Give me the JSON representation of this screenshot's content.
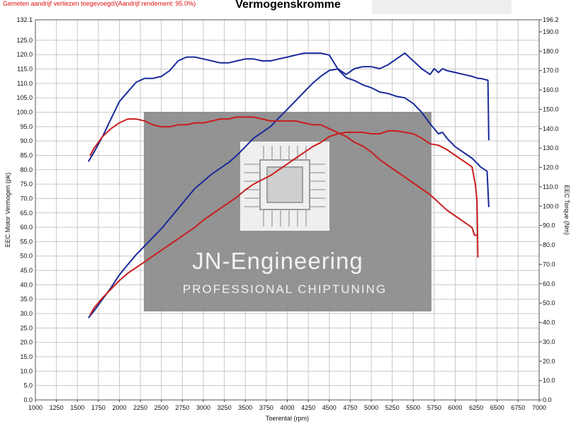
{
  "notice": "Gemeten aandrijf verliezen toegevoegd!(Aandrijf rendement: 95.0%)",
  "watermark": {
    "name": "JN-Engineering",
    "tagline": "PROFESSIONAL CHIPTUNING"
  },
  "colors": {
    "power_before": "#1a2a9a",
    "power_after": "#1a2a9a",
    "torque_before": "#c81e1e",
    "torque_after": "#c81e1e",
    "grid": "#c8c8c8",
    "watermark_bg": "#8a8a8a"
  },
  "chart_data": {
    "type": "line",
    "title": "Vermogenskromme",
    "xlabel": "Toerental (rpm)",
    "ylabel_left": "EEC Motor Vermogen (pk)",
    "ylabel_right": "EEC Torque (Nm)",
    "xlim": [
      1000,
      7000
    ],
    "ylim_left": [
      0,
      132.1
    ],
    "ylim_right": [
      0,
      196.2
    ],
    "grid": true,
    "x_ticks": [
      "1000",
      "1250",
      "1500",
      "1750",
      "2000",
      "2250",
      "2500",
      "2750",
      "3000",
      "3250",
      "3500",
      "3750",
      "4000",
      "4250",
      "4500",
      "4750",
      "5000",
      "5250",
      "5500",
      "5750",
      "6000",
      "6250",
      "6500",
      "6750",
      "7000"
    ],
    "y_left_ticks": [
      "0.0",
      "5.0",
      "10.0",
      "15.0",
      "20.0",
      "25.0",
      "30.0",
      "35.0",
      "40.0",
      "45.0",
      "50.0",
      "55.0",
      "60.0",
      "65.0",
      "70.0",
      "75.0",
      "80.0",
      "85.0",
      "90.0",
      "95.0",
      "100.0",
      "105.0",
      "110.0",
      "115.0",
      "120.0",
      "125.0",
      "132.1"
    ],
    "y_right_ticks": [
      "0.0",
      "10.0",
      "20.0",
      "30.0",
      "40.0",
      "50.0",
      "60.0",
      "70.0",
      "80.0",
      "90.0",
      "100.0",
      "110.0",
      "120.0",
      "130.0",
      "140.0",
      "150.0",
      "160.0",
      "170.0",
      "180.0",
      "190.0",
      "196.2"
    ],
    "series": [
      {
        "axis": "right",
        "kind": "torque_tuned",
        "color": "#1a2a9a",
        "x": [
          1630,
          1700,
          1800,
          1900,
          2000,
          2100,
          2200,
          2300,
          2400,
          2500,
          2600,
          2700,
          2800,
          2900,
          3000,
          3100,
          3200,
          3300,
          3400,
          3500,
          3600,
          3700,
          3800,
          3900,
          4000,
          4100,
          4200,
          4300,
          4400,
          4500,
          4600,
          4700,
          4800,
          4900,
          5000,
          5100,
          5200,
          5300,
          5400,
          5500,
          5600,
          5700,
          5750,
          5800,
          5850,
          5900,
          6000,
          6100,
          6200,
          6270,
          6300,
          6390,
          6400
        ],
        "y": [
          123,
          128,
          136,
          145,
          154,
          159,
          164,
          166,
          166,
          167,
          170,
          175,
          177,
          177,
          176,
          175,
          174,
          174,
          175,
          176,
          176,
          175,
          175,
          176,
          177,
          178,
          179,
          179,
          179,
          178,
          171,
          168,
          171,
          172,
          172,
          171,
          173,
          176,
          179,
          175,
          171,
          168,
          171,
          169,
          171,
          170,
          169,
          168,
          167,
          166,
          166,
          165,
          134
        ]
      },
      {
        "axis": "left",
        "kind": "power_tuned",
        "color": "#1a2a9a",
        "x": [
          1630,
          1700,
          1800,
          1900,
          2000,
          2100,
          2200,
          2300,
          2400,
          2500,
          2600,
          2700,
          2800,
          2900,
          3000,
          3100,
          3200,
          3300,
          3400,
          3500,
          3600,
          3700,
          3800,
          3900,
          4000,
          4100,
          4200,
          4300,
          4400,
          4500,
          4600,
          4700,
          4800,
          4900,
          5000,
          5100,
          5200,
          5300,
          5400,
          5500,
          5600,
          5700,
          5800,
          5850,
          5900,
          6000,
          6100,
          6200,
          6270,
          6300,
          6380,
          6400
        ],
        "y": [
          28.5,
          31,
          35,
          39,
          43.5,
          47,
          50.5,
          53.5,
          56.5,
          59.5,
          63,
          66.5,
          70,
          73.5,
          76,
          78.5,
          80.5,
          82.5,
          85,
          88,
          91,
          93,
          95,
          98,
          101,
          104,
          107,
          110,
          112.5,
          114.5,
          115,
          112,
          111,
          109.5,
          108.5,
          107,
          106.5,
          105.5,
          105,
          103,
          100,
          96,
          92.5,
          93,
          91,
          88,
          86,
          84,
          82,
          81,
          79.5,
          67
        ]
      },
      {
        "axis": "right",
        "kind": "torque_stock",
        "color": "#c81e1e",
        "x": [
          1650,
          1700,
          1800,
          1900,
          2000,
          2100,
          2200,
          2300,
          2400,
          2500,
          2600,
          2700,
          2800,
          2900,
          3000,
          3100,
          3200,
          3300,
          3400,
          3500,
          3600,
          3700,
          3800,
          3900,
          4000,
          4100,
          4200,
          4300,
          4400,
          4500,
          4600,
          4700,
          4800,
          4900,
          5000,
          5100,
          5200,
          5300,
          5400,
          5500,
          5600,
          5700,
          5800,
          5900,
          6000,
          6100,
          6200,
          6230,
          6260
        ],
        "y": [
          126,
          130,
          136,
          140,
          143,
          145,
          145,
          144,
          142,
          141,
          141,
          142,
          142,
          143,
          143,
          144,
          145,
          145,
          146,
          146,
          146,
          145,
          144,
          144,
          144,
          144,
          143,
          142,
          142,
          140,
          138,
          136,
          133,
          131,
          128,
          124,
          121,
          118,
          115,
          112,
          109,
          106,
          102,
          98,
          95,
          92,
          89,
          85,
          85
        ]
      },
      {
        "axis": "left",
        "kind": "power_stock",
        "color": "#c81e1e",
        "x": [
          1650,
          1700,
          1800,
          1900,
          2000,
          2100,
          2200,
          2300,
          2400,
          2500,
          2600,
          2700,
          2800,
          2900,
          3000,
          3100,
          3200,
          3300,
          3400,
          3500,
          3600,
          3700,
          3800,
          3900,
          4000,
          4100,
          4200,
          4300,
          4400,
          4500,
          4600,
          4700,
          4800,
          4900,
          5000,
          5100,
          5200,
          5300,
          5400,
          5500,
          5600,
          5700,
          5800,
          5900,
          6000,
          6100,
          6200,
          6240,
          6260,
          6270
        ],
        "y": [
          29.5,
          32,
          35.5,
          38.5,
          41.5,
          44,
          46,
          48,
          50,
          52,
          54,
          56,
          58,
          60,
          62.5,
          64.5,
          66.5,
          68.5,
          70.5,
          73,
          75,
          76.5,
          78,
          80,
          82,
          84,
          86,
          88,
          89.5,
          91.5,
          92.5,
          93,
          93,
          93,
          92.5,
          92.5,
          93.5,
          93.5,
          93,
          92.5,
          91,
          89,
          88.5,
          87,
          85,
          83,
          81,
          75,
          69,
          49.5
        ]
      }
    ]
  }
}
